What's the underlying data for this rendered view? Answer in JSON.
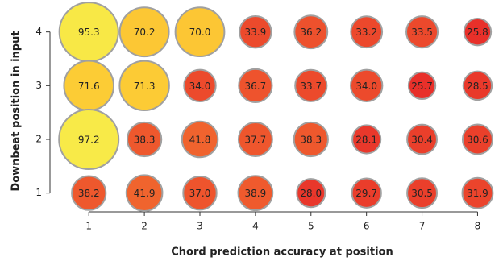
{
  "chart_data": {
    "type": "bubble",
    "xlabel": "Chord prediction accuracy at position",
    "ylabel": "Downbeat position in input",
    "x": [
      1,
      2,
      3,
      4,
      5,
      6,
      7,
      8,
      1,
      2,
      3,
      4,
      5,
      6,
      7,
      8,
      1,
      2,
      3,
      4,
      5,
      6,
      7,
      8,
      1,
      2,
      3,
      4,
      5,
      6,
      7,
      8
    ],
    "y": [
      4,
      4,
      4,
      4,
      4,
      4,
      4,
      4,
      3,
      3,
      3,
      3,
      3,
      3,
      3,
      3,
      2,
      2,
      2,
      2,
      2,
      2,
      2,
      2,
      1,
      1,
      1,
      1,
      1,
      1,
      1,
      1
    ],
    "values": [
      95.3,
      70.2,
      70.0,
      33.9,
      36.2,
      33.2,
      33.5,
      25.8,
      71.6,
      71.3,
      34.0,
      36.7,
      33.7,
      34.0,
      25.7,
      28.5,
      97.2,
      38.3,
      41.8,
      37.7,
      38.3,
      28.1,
      30.4,
      30.6,
      38.2,
      41.9,
      37.0,
      38.9,
      28.0,
      29.7,
      30.5,
      31.9
    ],
    "value_labels": [
      "95.3",
      "70.2",
      "70.0",
      "33.9",
      "36.2",
      "33.2",
      "33.5",
      "25.8",
      "71.6",
      "71.3",
      "34.0",
      "36.7",
      "33.7",
      "34.0",
      "25.7",
      "28.5",
      "97.2",
      "38.3",
      "41.8",
      "37.7",
      "38.3",
      "28.1",
      "30.4",
      "30.6",
      "38.2",
      "41.9",
      "37.0",
      "38.9",
      "28.0",
      "29.7",
      "30.5",
      "31.9"
    ],
    "colormap": [
      "#e8302a",
      "#f47c30",
      "#fdd235",
      "#f8ea48"
    ],
    "edge_color": "#a0a0a0",
    "xlim": [
      0.3,
      8.4
    ],
    "xticks": [
      1,
      2,
      3,
      4,
      5,
      6,
      7,
      8
    ],
    "ylim": [
      0.65,
      4.4
    ],
    "yticks": [
      1,
      2,
      3,
      4
    ]
  }
}
